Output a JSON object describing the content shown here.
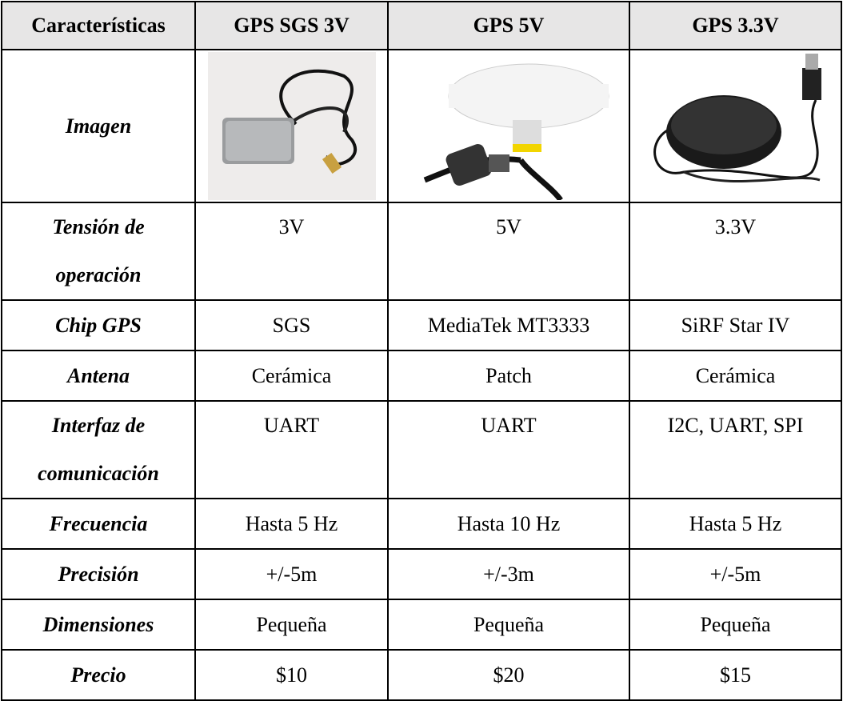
{
  "table": {
    "header": [
      "Características",
      "GPS SGS 3V",
      "GPS 5V",
      "GPS 3.3V"
    ],
    "rows": [
      [
        "Imagen"
      ],
      [
        "Tensión de operación",
        "3V",
        "5V",
        "3.3V"
      ],
      [
        "Chip GPS",
        "SGS",
        "MediaTek MT3333",
        "SiRF Star IV"
      ],
      [
        "Antena",
        "Cerámica",
        "Patch",
        "Cerámica"
      ],
      [
        "Interfaz de comunicación",
        "UART",
        "UART",
        "I2C, UART, SPI"
      ],
      [
        "Frecuencia",
        "Hasta 5 Hz",
        "Hasta 10 Hz",
        "Hasta 5 Hz"
      ],
      [
        "Precisión",
        "+/-5m",
        "+/-3m",
        "+/-5m"
      ],
      [
        "Dimensiones",
        "Pequeña",
        "Pequeña",
        "Pequeña"
      ],
      [
        "Precio",
        "$10",
        "$20",
        "$15"
      ]
    ]
  }
}
